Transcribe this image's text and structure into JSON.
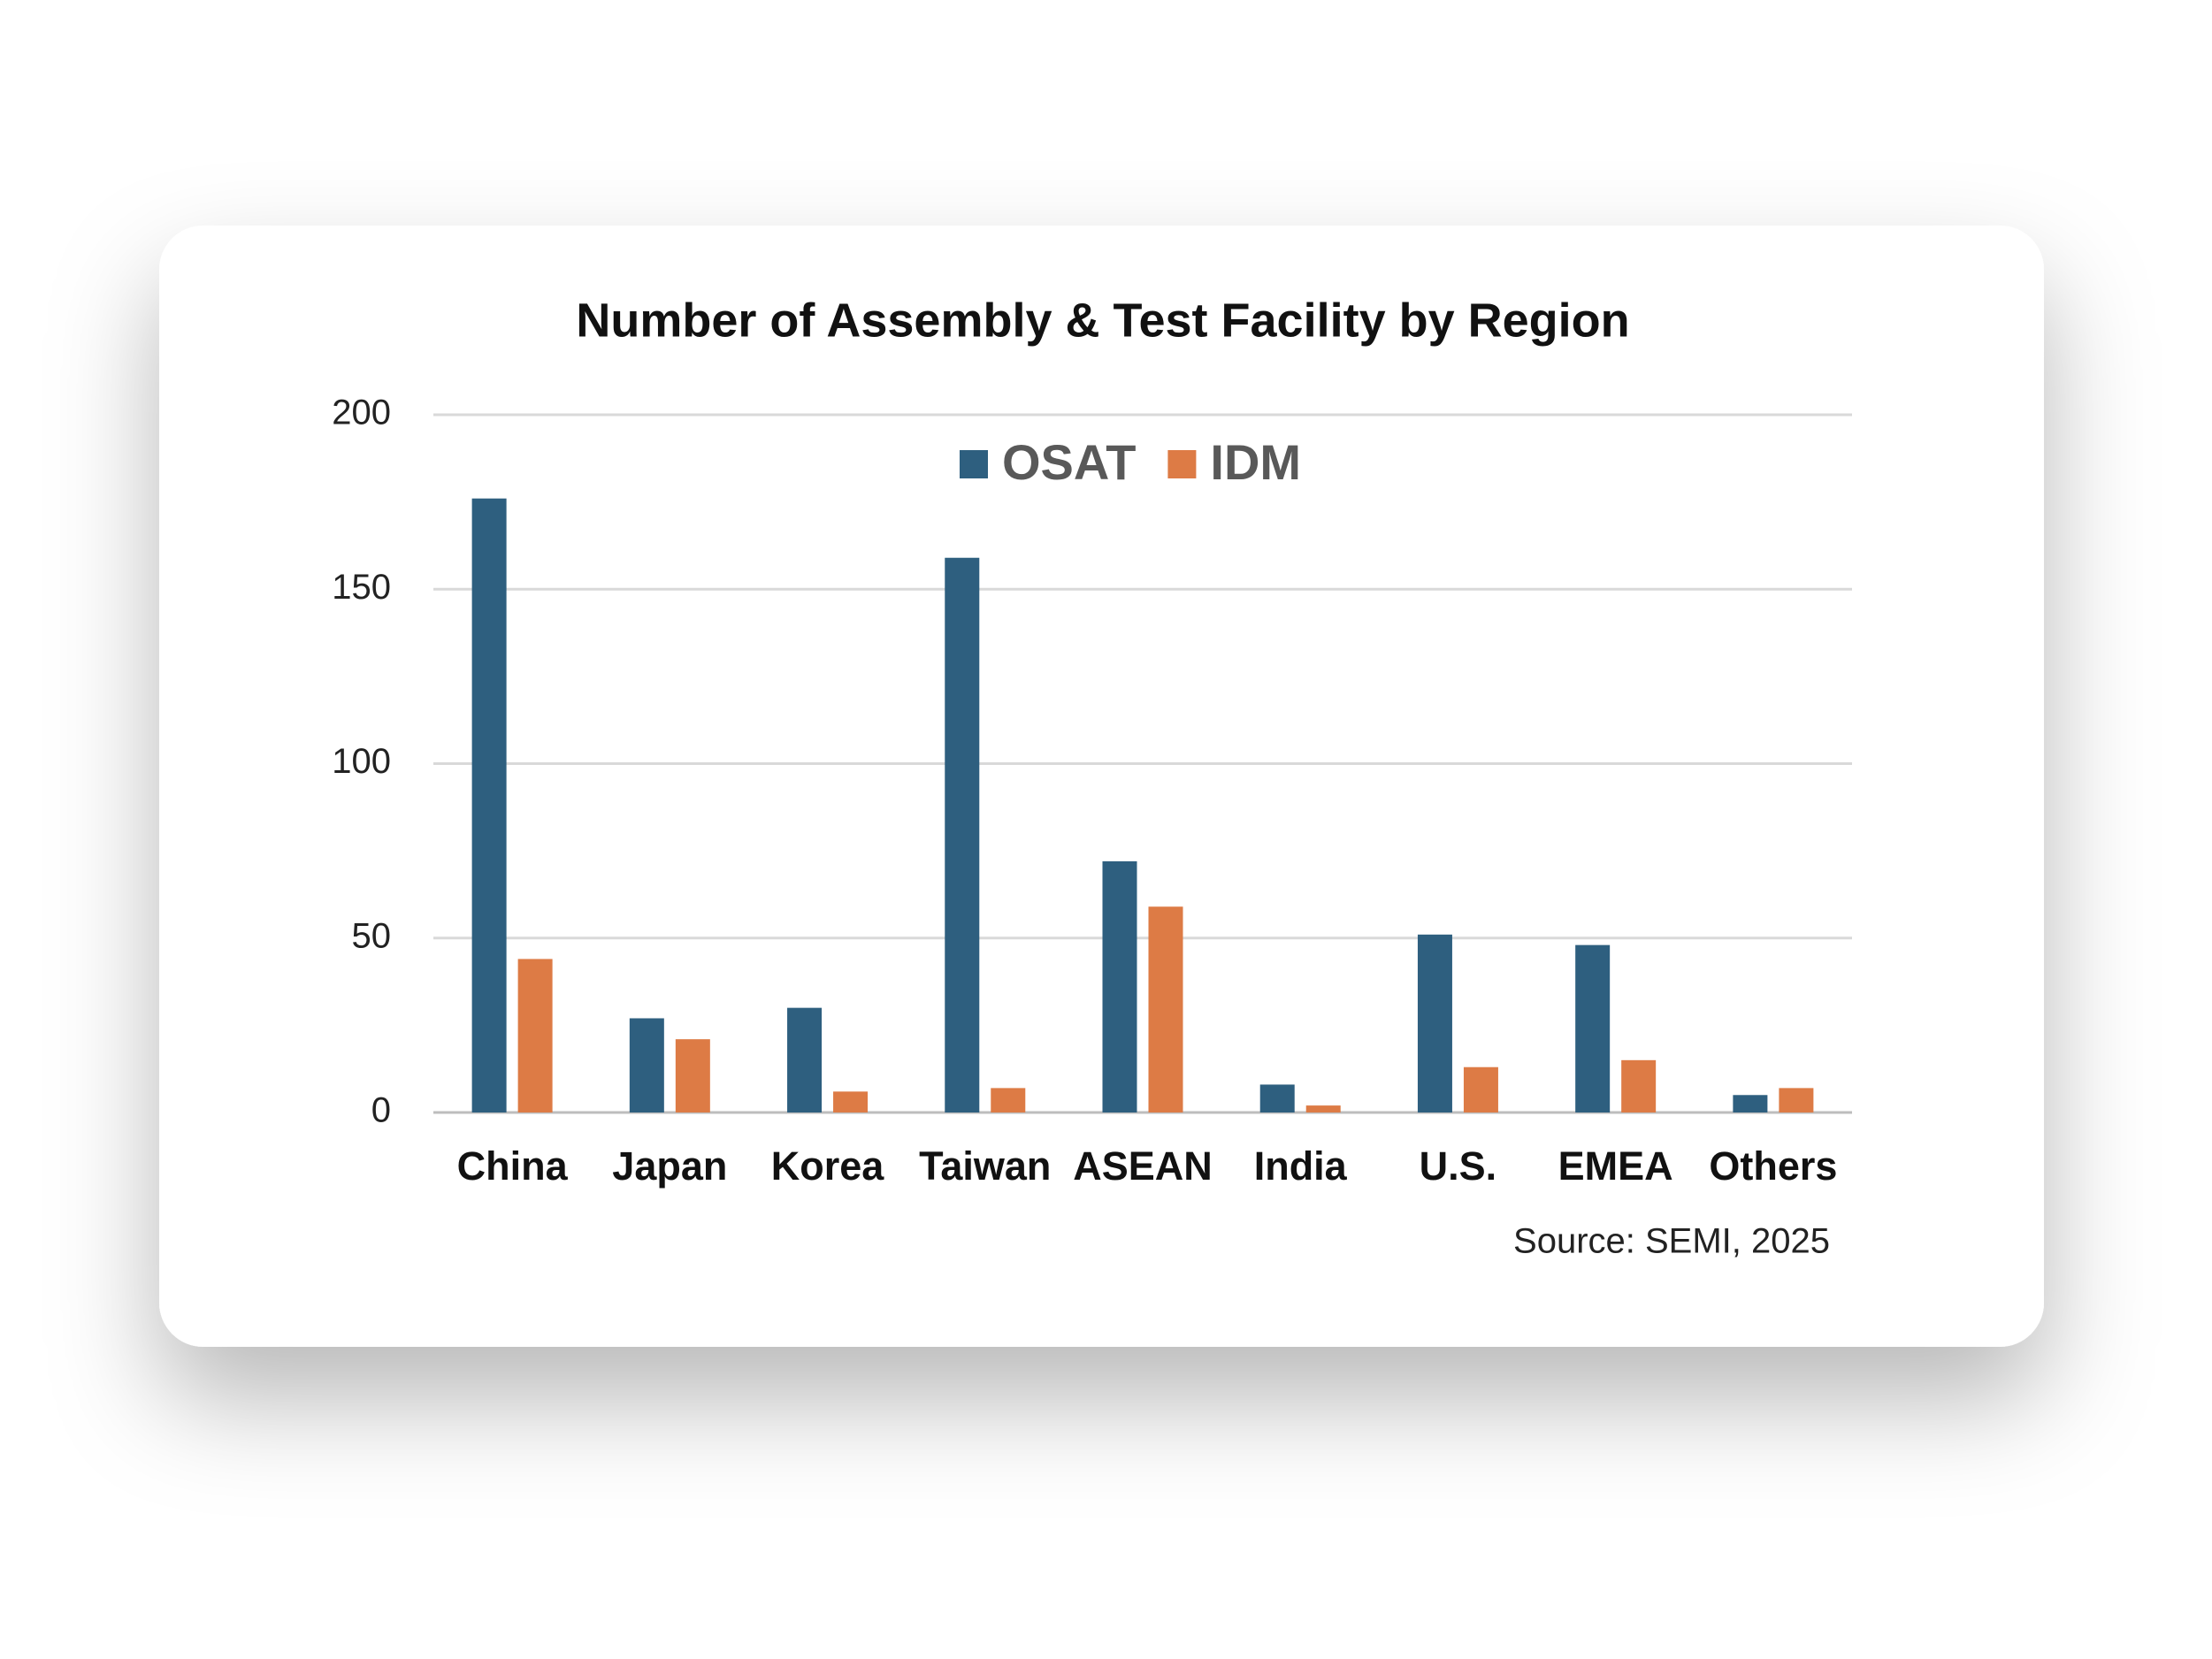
{
  "chart_data": {
    "type": "bar",
    "title": "Number of Assembly & Test Facility by Region",
    "source": "Source: SEMI, 2025",
    "categories": [
      "China",
      "Japan",
      "Korea",
      "Taiwan",
      "ASEAN",
      "India",
      "U.S.",
      "EMEA",
      "Others"
    ],
    "series": [
      {
        "name": "OSAT",
        "color": "#2e5f7f",
        "values": [
          176,
          27,
          30,
          159,
          72,
          8,
          51,
          48,
          5
        ]
      },
      {
        "name": "IDM",
        "color": "#dd7b45",
        "values": [
          44,
          21,
          6,
          7,
          59,
          2,
          13,
          15,
          7
        ]
      }
    ],
    "ylim": [
      0,
      200
    ],
    "yticks": [
      0,
      50,
      100,
      150,
      200
    ],
    "grid": true,
    "legend": "top"
  }
}
